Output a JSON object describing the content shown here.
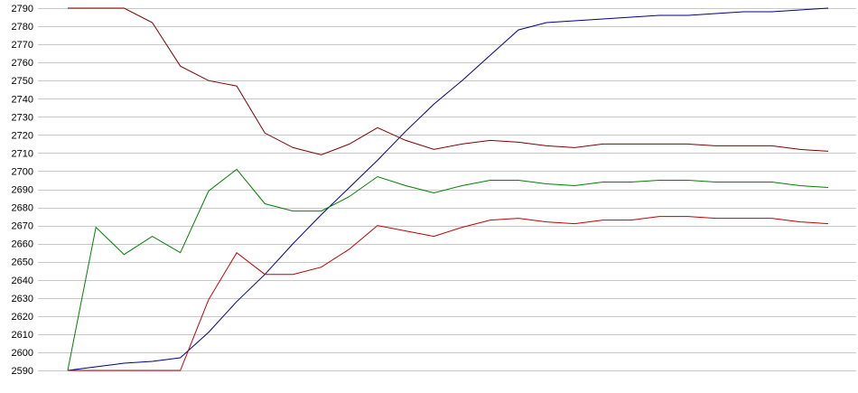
{
  "chart_data": {
    "type": "line",
    "title": "",
    "xlabel": "",
    "ylabel": "",
    "ylim": [
      2590,
      2790
    ],
    "yticks": [
      2590,
      2600,
      2610,
      2620,
      2630,
      2640,
      2650,
      2660,
      2670,
      2680,
      2690,
      2700,
      2710,
      2720,
      2730,
      2740,
      2750,
      2760,
      2770,
      2780,
      2790
    ],
    "grid": true,
    "legend": "none",
    "x": [
      0,
      1,
      2,
      3,
      4,
      5,
      6,
      7,
      8,
      9,
      10,
      11,
      12,
      13,
      14,
      15,
      16,
      17,
      18,
      19,
      20,
      21,
      22,
      23,
      24,
      25,
      26,
      27
    ],
    "series": [
      {
        "color": "#000080",
        "values": [
          2590,
          2592,
          2594,
          2595,
          2597,
          2611,
          2628,
          2643,
          2660,
          2676,
          2691,
          2706,
          2722,
          2737,
          2750,
          2764,
          2778,
          2782,
          2783,
          2784,
          2785,
          2786,
          2786,
          2787,
          2788,
          2788,
          2789,
          2790
        ]
      },
      {
        "color": "#800000",
        "values": [
          2790,
          2790,
          2790,
          2782,
          2758,
          2750,
          2747,
          2721,
          2713,
          2709,
          2715,
          2724,
          2717,
          2712,
          2715,
          2717,
          2716,
          2714,
          2713,
          2715,
          2715,
          2715,
          2715,
          2714,
          2714,
          2714,
          2712,
          2711
        ]
      },
      {
        "color": "#008000",
        "values": [
          2590,
          2669,
          2654,
          2664,
          2655,
          2689,
          2701,
          2682,
          2678,
          2678,
          2686,
          2697,
          2692,
          2688,
          2692,
          2695,
          2695,
          2693,
          2692,
          2694,
          2694,
          2695,
          2695,
          2694,
          2694,
          2694,
          2692,
          2691
        ]
      },
      {
        "color": "#c00000",
        "values": [
          2590,
          2590,
          2590,
          2590,
          2590,
          2629,
          2655,
          2643,
          2643,
          2647,
          2657,
          2670,
          2667,
          2664,
          2669,
          2673,
          2674,
          2672,
          2671,
          2673,
          2673,
          2675,
          2675,
          2674,
          2674,
          2674,
          2672,
          2671
        ]
      }
    ]
  }
}
